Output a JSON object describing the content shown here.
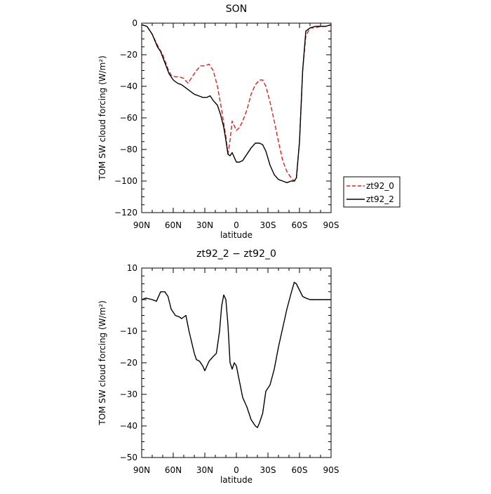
{
  "chart_data": [
    {
      "type": "line",
      "title": "SON",
      "xlabel": "latitude",
      "ylabel": "TOM SW cloud forcing (W/m²)",
      "xlim": [
        90,
        -90
      ],
      "ylim": [
        -120,
        0
      ],
      "xticks": [
        90,
        60,
        30,
        0,
        -30,
        -60,
        -90
      ],
      "xtick_labels": [
        "90N",
        "60N",
        "30N",
        "0",
        "30S",
        "60S",
        "90S"
      ],
      "yticks": [
        0,
        -20,
        -40,
        -60,
        -80,
        -100,
        -120
      ],
      "ytick_labels": [
        "0",
        "−20",
        "−40",
        "−60",
        "−80",
        "−100",
        "−120"
      ],
      "legend_position": "outside-right",
      "series": [
        {
          "name": "zt92_0",
          "color": "#e02020",
          "dash": "dashed",
          "points": [
            [
              90,
              -1
            ],
            [
              85,
              -2
            ],
            [
              80,
              -7
            ],
            [
              75,
              -14
            ],
            [
              70,
              -20
            ],
            [
              65,
              -29
            ],
            [
              62,
              -33
            ],
            [
              58,
              -34
            ],
            [
              54,
              -34
            ],
            [
              50,
              -35
            ],
            [
              46,
              -38
            ],
            [
              42,
              -34
            ],
            [
              38,
              -30
            ],
            [
              34,
              -27
            ],
            [
              30,
              -27
            ],
            [
              26,
              -26
            ],
            [
              22,
              -30
            ],
            [
              18,
              -40
            ],
            [
              14,
              -55
            ],
            [
              10,
              -72
            ],
            [
              8,
              -83
            ],
            [
              6,
              -74
            ],
            [
              4,
              -62
            ],
            [
              2,
              -65
            ],
            [
              0,
              -68
            ],
            [
              -3,
              -66
            ],
            [
              -6,
              -62
            ],
            [
              -10,
              -55
            ],
            [
              -14,
              -45
            ],
            [
              -18,
              -39
            ],
            [
              -22,
              -36
            ],
            [
              -25,
              -36
            ],
            [
              -28,
              -40
            ],
            [
              -32,
              -50
            ],
            [
              -36,
              -62
            ],
            [
              -40,
              -75
            ],
            [
              -44,
              -87
            ],
            [
              -48,
              -94
            ],
            [
              -52,
              -98
            ],
            [
              -55,
              -100
            ],
            [
              -57,
              -99
            ],
            [
              -60,
              -75
            ],
            [
              -63,
              -30
            ],
            [
              -66,
              -8
            ],
            [
              -70,
              -3
            ],
            [
              -75,
              -3
            ],
            [
              -80,
              -2
            ],
            [
              -85,
              -2
            ],
            [
              -90,
              -1
            ]
          ]
        },
        {
          "name": "zt92_2",
          "color": "#000000",
          "dash": "solid",
          "points": [
            [
              90,
              -1
            ],
            [
              85,
              -2
            ],
            [
              80,
              -7
            ],
            [
              75,
              -15
            ],
            [
              72,
              -18
            ],
            [
              68,
              -25
            ],
            [
              64,
              -32
            ],
            [
              60,
              -36
            ],
            [
              56,
              -38
            ],
            [
              52,
              -39
            ],
            [
              48,
              -41
            ],
            [
              44,
              -43
            ],
            [
              40,
              -45
            ],
            [
              36,
              -46
            ],
            [
              32,
              -47
            ],
            [
              28,
              -47
            ],
            [
              25,
              -46
            ],
            [
              22,
              -49
            ],
            [
              18,
              -52
            ],
            [
              15,
              -58
            ],
            [
              12,
              -66
            ],
            [
              10,
              -74
            ],
            [
              8,
              -83
            ],
            [
              6,
              -84
            ],
            [
              4,
              -82
            ],
            [
              2,
              -85
            ],
            [
              0,
              -88
            ],
            [
              -3,
              -88
            ],
            [
              -6,
              -87
            ],
            [
              -10,
              -83
            ],
            [
              -14,
              -79
            ],
            [
              -18,
              -76
            ],
            [
              -22,
              -76
            ],
            [
              -25,
              -77
            ],
            [
              -28,
              -81
            ],
            [
              -32,
              -90
            ],
            [
              -36,
              -96
            ],
            [
              -40,
              -99
            ],
            [
              -44,
              -100
            ],
            [
              -48,
              -101
            ],
            [
              -52,
              -100
            ],
            [
              -55,
              -100
            ],
            [
              -57,
              -98
            ],
            [
              -60,
              -75
            ],
            [
              -63,
              -30
            ],
            [
              -66,
              -5
            ],
            [
              -70,
              -3
            ],
            [
              -75,
              -2
            ],
            [
              -80,
              -2
            ],
            [
              -85,
              -2
            ],
            [
              -90,
              -1
            ]
          ]
        }
      ]
    },
    {
      "type": "line",
      "title": "zt92_2 − zt92_0",
      "xlabel": "latitude",
      "ylabel": "TOM SW cloud forcing (W/m²)",
      "xlim": [
        90,
        -90
      ],
      "ylim": [
        -50,
        10
      ],
      "xticks": [
        90,
        60,
        30,
        0,
        -30,
        -60,
        -90
      ],
      "xtick_labels": [
        "90N",
        "60N",
        "30N",
        "0",
        "30S",
        "60S",
        "90S"
      ],
      "yticks": [
        10,
        0,
        -10,
        -20,
        -30,
        -40,
        -50
      ],
      "ytick_labels": [
        "10",
        "0",
        "−10",
        "−20",
        "−30",
        "−40",
        "−50"
      ],
      "series": [
        {
          "color": "#000000",
          "dash": "solid",
          "points": [
            [
              90,
              0
            ],
            [
              86,
              0.5
            ],
            [
              80,
              0
            ],
            [
              76,
              -0.5
            ],
            [
              72,
              2.5
            ],
            [
              68,
              2.5
            ],
            [
              65,
              1
            ],
            [
              62,
              -3
            ],
            [
              58,
              -5
            ],
            [
              54,
              -5.5
            ],
            [
              52,
              -6
            ],
            [
              48,
              -5
            ],
            [
              45,
              -10
            ],
            [
              40,
              -17
            ],
            [
              38,
              -19
            ],
            [
              35,
              -19.5
            ],
            [
              32,
              -21
            ],
            [
              30,
              -22.5
            ],
            [
              28,
              -21
            ],
            [
              26,
              -19.5
            ],
            [
              22,
              -18
            ],
            [
              19,
              -17
            ],
            [
              16,
              -10
            ],
            [
              14,
              -2
            ],
            [
              12,
              1.5
            ],
            [
              10,
              0
            ],
            [
              8,
              -8
            ],
            [
              6,
              -20
            ],
            [
              4,
              -22
            ],
            [
              2,
              -20
            ],
            [
              0,
              -21
            ],
            [
              -3,
              -26
            ],
            [
              -6,
              -31
            ],
            [
              -10,
              -34
            ],
            [
              -14,
              -38
            ],
            [
              -18,
              -40
            ],
            [
              -20,
              -40.5
            ],
            [
              -22,
              -39
            ],
            [
              -25,
              -36
            ],
            [
              -28,
              -29
            ],
            [
              -32,
              -27
            ],
            [
              -36,
              -22
            ],
            [
              -40,
              -15
            ],
            [
              -44,
              -9
            ],
            [
              -48,
              -3
            ],
            [
              -52,
              2
            ],
            [
              -55,
              5.5
            ],
            [
              -57,
              5
            ],
            [
              -60,
              3
            ],
            [
              -63,
              1
            ],
            [
              -66,
              0.5
            ],
            [
              -70,
              0
            ],
            [
              -75,
              0
            ],
            [
              -80,
              0
            ],
            [
              -85,
              0
            ],
            [
              -90,
              0
            ]
          ]
        }
      ]
    }
  ]
}
